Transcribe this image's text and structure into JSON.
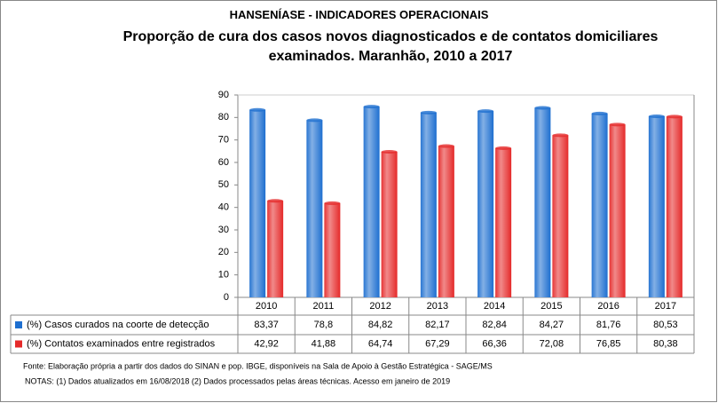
{
  "chart_data": {
    "type": "bar",
    "title": "HANSENÍASE - INDICADORES OPERACIONAIS",
    "subtitle": "Proporção de cura dos casos novos diagnosticados e de contatos domiciliares examinados. Maranhão, 2010 a 2017",
    "categories": [
      "2010",
      "2011",
      "2012",
      "2013",
      "2014",
      "2015",
      "2016",
      "2017"
    ],
    "series": [
      {
        "name": "(%) Casos curados na coorte de detecção",
        "color": "#1e6fd0",
        "values": [
          83.37,
          78.8,
          84.82,
          82.17,
          82.84,
          84.27,
          81.76,
          80.53
        ],
        "value_labels": [
          "83,37",
          "78,8",
          "84,82",
          "82,17",
          "82,84",
          "84,27",
          "81,76",
          "80,53"
        ]
      },
      {
        "name": "(%) Contatos examinados entre registrados",
        "color": "#e52a2a",
        "values": [
          42.92,
          41.88,
          64.74,
          67.29,
          66.36,
          72.08,
          76.85,
          80.38
        ],
        "value_labels": [
          "42,92",
          "41,88",
          "64,74",
          "67,29",
          "66,36",
          "72,08",
          "76,85",
          "80,38"
        ]
      }
    ],
    "ylim": [
      0,
      90
    ],
    "yticks": [
      0,
      10,
      20,
      30,
      40,
      50,
      60,
      70,
      80,
      90
    ],
    "grid": false,
    "source": "Fonte:  Elaboração própria a partir dos dados do  SINAN  e  pop. IBGE, disponíveis na Sala de Apoio à Gestão Estratégica - SAGE/MS",
    "notes": "NOTAS: (1) Dados atualizados em 16/08/2018 (2) Dados processados pelas áreas técnicas. Acesso em janeiro de 2019"
  }
}
